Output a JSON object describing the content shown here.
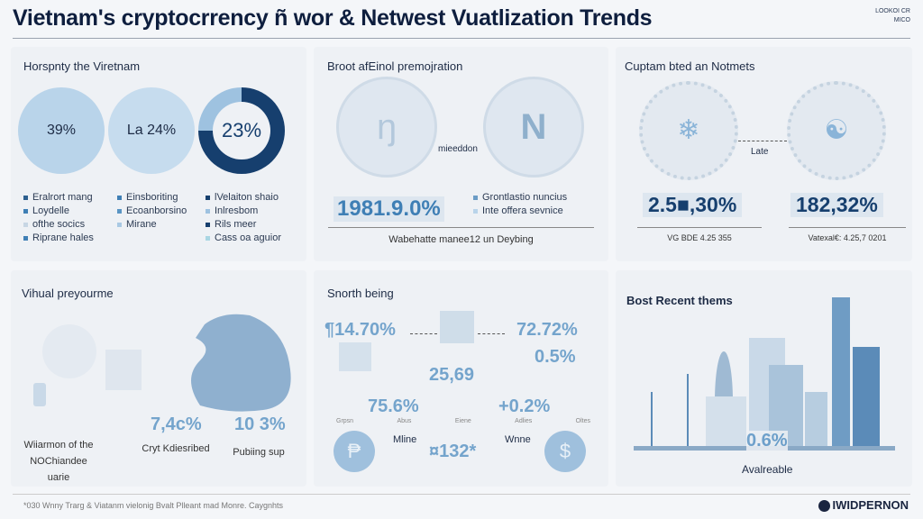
{
  "header": {
    "title": "Vietnam's cryptocrrency ñ wor & Netwest Vuatlization Trends",
    "badge": [
      "LOOKOI CR",
      "MICO"
    ]
  },
  "panel1": {
    "title": "Horspnty the Viretnam",
    "circles": [
      {
        "label": "39%",
        "value": 39
      },
      {
        "label": "La 24%",
        "value": 24
      },
      {
        "label": "23%",
        "value": 23
      }
    ],
    "legend": [
      [
        "Eralrort mang",
        "Loydelle",
        "ofthe socics",
        "Riprane hales"
      ],
      [
        "Einsboriting",
        "Ecoanborsino",
        "Mirane"
      ],
      [
        "lVelaiton shaio",
        "Inlresbom",
        "Rils meer",
        "Cass oa aguior"
      ]
    ]
  },
  "panel2": {
    "title": "Broot afEinol premojration",
    "center_label": "mieeddon",
    "big": "1981.9.0%",
    "legend": [
      "Grontlastio nuncius",
      "Inte offera sevnice"
    ],
    "caption": "Wabehatte manee12 un Deybing"
  },
  "panel3": {
    "title": "Cuptam bted an Notmets",
    "center_label": "Late",
    "stats": [
      {
        "value": "2.5■,30%",
        "caption": "VG BDE 4.25 355"
      },
      {
        "value": "182,32%",
        "caption": "Vatexal€: 4.25,7 0201"
      }
    ]
  },
  "panel4": {
    "title": "Vihual preyourme",
    "stats": [
      "7,4c%",
      "10 3%"
    ],
    "captions": [
      "Wiiarmon of the NOChiandee uarie",
      "Cryt Kdiesribed",
      "Pubiing sup"
    ]
  },
  "panel5": {
    "title": "Snorth being",
    "values": [
      "¶14.70%",
      "72.72%",
      "0.5%",
      "25,69",
      "75.6%",
      "+0.2%",
      "¤132*"
    ],
    "axis": [
      "Grpsn",
      "Abus",
      "Eiene",
      "Adlies",
      "Oltes"
    ],
    "labels": [
      "Mline",
      "Wnne"
    ]
  },
  "panel6": {
    "title": "Bost Recent thems",
    "value": "0.6%",
    "caption": "Avalreable"
  },
  "footer": {
    "text": "*030 Wnny Trarg & Viatanm vielonig Bvalt Plleant mad Monre. Caygnhts",
    "brand": "IWIDPERNON"
  },
  "colors": {
    "dark": "#163f6e",
    "mid": "#3f7fb5",
    "light": "#a9c9e3"
  }
}
